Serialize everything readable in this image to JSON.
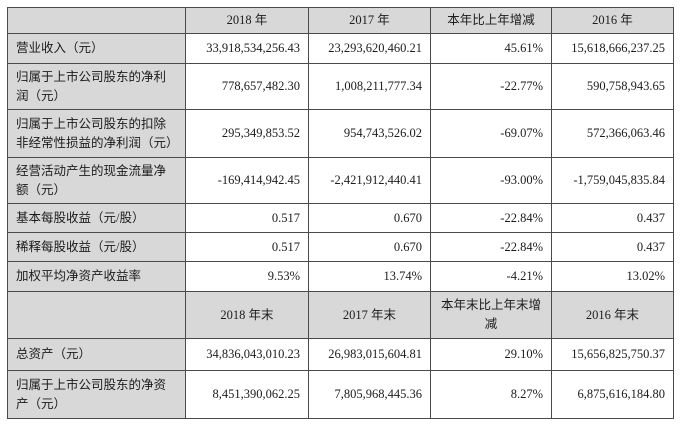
{
  "table": {
    "header_bg": "#d8d8d8",
    "border_color": "#4a4a4a",
    "annual_header": {
      "col_2018": "2018 年",
      "col_2017": "2017 年",
      "col_change": "本年比上年增减",
      "col_2016": "2016 年"
    },
    "annual_rows": [
      {
        "label": "营业收入（元）",
        "v2018": "33,918,534,256.43",
        "v2017": "23,293,620,460.21",
        "change": "45.61%",
        "v2016": "15,618,666,237.25"
      },
      {
        "label": "归属于上市公司股东的净利润（元）",
        "v2018": "778,657,482.30",
        "v2017": "1,008,211,777.34",
        "change": "-22.77%",
        "v2016": "590,758,943.65"
      },
      {
        "label": "归属于上市公司股东的扣除非经常性损益的净利润（元）",
        "v2018": "295,349,853.52",
        "v2017": "954,743,526.02",
        "change": "-69.07%",
        "v2016": "572,366,063.46"
      },
      {
        "label": "经营活动产生的现金流量净额（元）",
        "v2018": "-169,414,942.45",
        "v2017": "-2,421,912,440.41",
        "change": "-93.00%",
        "v2016": "-1,759,045,835.84"
      },
      {
        "label": "基本每股收益（元/股）",
        "v2018": "0.517",
        "v2017": "0.670",
        "change": "-22.84%",
        "v2016": "0.437"
      },
      {
        "label": "稀释每股收益（元/股）",
        "v2018": "0.517",
        "v2017": "0.670",
        "change": "-22.84%",
        "v2016": "0.437"
      },
      {
        "label": "加权平均净资产收益率",
        "v2018": "9.53%",
        "v2017": "13.74%",
        "change": "-4.21%",
        "v2016": "13.02%"
      }
    ],
    "yearend_header": {
      "col_2018": "2018 年末",
      "col_2017": "2017 年末",
      "col_change": "本年末比上年末增减",
      "col_2016": "2016 年末"
    },
    "yearend_rows": [
      {
        "label": "总资产（元）",
        "v2018": "34,836,043,010.23",
        "v2017": "26,983,015,604.81",
        "change": "29.10%",
        "v2016": "15,656,825,750.37"
      },
      {
        "label": "归属于上市公司股东的净资产（元）",
        "v2018": "8,451,390,062.25",
        "v2017": "7,805,968,445.36",
        "change": "8.27%",
        "v2016": "6,875,616,184.80"
      }
    ]
  }
}
